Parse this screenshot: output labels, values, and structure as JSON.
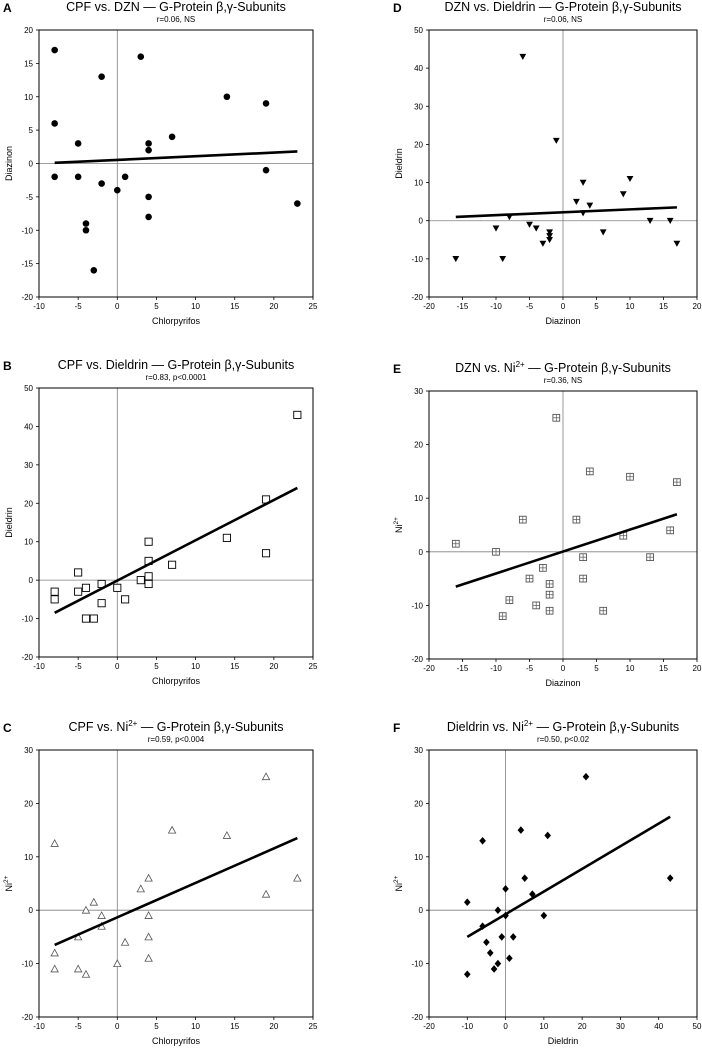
{
  "colors": {
    "ink": "#000000",
    "refline": "#808080",
    "background": "#ffffff"
  },
  "chart_data": [
    {
      "letter": "A",
      "type": "scatter",
      "marker": "circle-filled",
      "title": "CPF vs. DZN — G-Protein β,γ-Subunits",
      "title_sup": "",
      "subtitle": "r=0.06, NS",
      "xlabel": "Chlorpyrifos",
      "ylabel": "Diazinon",
      "ylabel_sup": "",
      "xlim": [
        -10,
        25
      ],
      "ylim": [
        -20,
        20
      ],
      "xticks": [
        -10,
        -5,
        0,
        5,
        10,
        15,
        20,
        25
      ],
      "yticks": [
        -20,
        -15,
        -10,
        -5,
        0,
        5,
        10,
        15,
        20
      ],
      "points": [
        [
          -8,
          17
        ],
        [
          -8,
          6
        ],
        [
          -8,
          -2
        ],
        [
          -5,
          3
        ],
        [
          -5,
          -2
        ],
        [
          -4,
          -9
        ],
        [
          -4,
          -10
        ],
        [
          -3,
          -16
        ],
        [
          -2,
          13
        ],
        [
          -2,
          -3
        ],
        [
          0,
          -4
        ],
        [
          1,
          -2
        ],
        [
          3,
          16
        ],
        [
          4,
          3
        ],
        [
          4,
          2
        ],
        [
          4,
          -5
        ],
        [
          4,
          -8
        ],
        [
          7,
          4
        ],
        [
          14,
          10
        ],
        [
          19,
          9
        ],
        [
          19,
          -1
        ],
        [
          23,
          -6
        ]
      ],
      "fit": [
        [
          -8,
          0.1
        ],
        [
          23,
          1.8
        ]
      ]
    },
    {
      "letter": "D",
      "type": "scatter",
      "marker": "triangle-down-filled",
      "title": "DZN vs. Dieldrin — G-Protein β,γ-Subunits",
      "title_sup": "",
      "subtitle": "r=0.06, NS",
      "xlabel": "Diazinon",
      "ylabel": "Dieldrin",
      "ylabel_sup": "",
      "xlim": [
        -20,
        20
      ],
      "ylim": [
        -20,
        50
      ],
      "xticks": [
        -20,
        -15,
        -10,
        -5,
        0,
        5,
        10,
        15,
        20
      ],
      "yticks": [
        -20,
        -10,
        0,
        10,
        20,
        30,
        40,
        50
      ],
      "points": [
        [
          -16,
          -10
        ],
        [
          -10,
          -2
        ],
        [
          -9,
          -10
        ],
        [
          -8,
          1
        ],
        [
          -6,
          43
        ],
        [
          -5,
          -1
        ],
        [
          -4,
          -2
        ],
        [
          -3,
          -6
        ],
        [
          -2,
          -3
        ],
        [
          -2,
          -4
        ],
        [
          -2,
          -5
        ],
        [
          -1,
          21
        ],
        [
          2,
          5
        ],
        [
          3,
          10
        ],
        [
          3,
          2
        ],
        [
          4,
          4
        ],
        [
          6,
          -3
        ],
        [
          9,
          7
        ],
        [
          10,
          11
        ],
        [
          13,
          0
        ],
        [
          16,
          0
        ],
        [
          17,
          -6
        ]
      ],
      "fit": [
        [
          -16,
          1.0
        ],
        [
          17,
          3.5
        ]
      ]
    },
    {
      "letter": "B",
      "type": "scatter",
      "marker": "square-open",
      "title": "CPF vs. Dieldrin — G-Protein β,γ-Subunits",
      "title_sup": "",
      "subtitle": "r=0.83, p<0.0001",
      "xlabel": "Chlorpyrifos",
      "ylabel": "Dieldrin",
      "ylabel_sup": "",
      "xlim": [
        -10,
        25
      ],
      "ylim": [
        -20,
        50
      ],
      "xticks": [
        -10,
        -5,
        0,
        5,
        10,
        15,
        20,
        25
      ],
      "yticks": [
        -20,
        -10,
        0,
        10,
        20,
        30,
        40,
        50
      ],
      "points": [
        [
          -8,
          -3
        ],
        [
          -8,
          -5
        ],
        [
          -5,
          2
        ],
        [
          -5,
          -3
        ],
        [
          -4,
          -2
        ],
        [
          -4,
          -10
        ],
        [
          -3,
          -10
        ],
        [
          -2,
          -1
        ],
        [
          -2,
          -6
        ],
        [
          0,
          -2
        ],
        [
          1,
          -5
        ],
        [
          3,
          0
        ],
        [
          4,
          10
        ],
        [
          4,
          5
        ],
        [
          4,
          1
        ],
        [
          4,
          -1
        ],
        [
          7,
          4
        ],
        [
          14,
          11
        ],
        [
          19,
          21
        ],
        [
          19,
          7
        ],
        [
          23,
          43
        ]
      ],
      "fit": [
        [
          -8,
          -8.5
        ],
        [
          23,
          24
        ]
      ]
    },
    {
      "letter": "E",
      "type": "scatter",
      "marker": "square-cross",
      "title": "DZN vs. Ni",
      "title_sup": "2+",
      "title_rest": " — G-Protein β,γ-Subunits",
      "subtitle": "r=0.36, NS",
      "xlabel": "Diazinon",
      "ylabel": "Ni",
      "ylabel_sup": "2+",
      "xlim": [
        -20,
        20
      ],
      "ylim": [
        -20,
        30
      ],
      "xticks": [
        -20,
        -15,
        -10,
        -5,
        0,
        5,
        10,
        15,
        20
      ],
      "yticks": [
        -20,
        -10,
        0,
        10,
        20,
        30
      ],
      "points": [
        [
          -16,
          1.5
        ],
        [
          -10,
          0
        ],
        [
          -9,
          -12
        ],
        [
          -8,
          -9
        ],
        [
          -6,
          6
        ],
        [
          -5,
          -5
        ],
        [
          -4,
          -10
        ],
        [
          -3,
          -3
        ],
        [
          -2,
          -6
        ],
        [
          -2,
          -8
        ],
        [
          -2,
          -11
        ],
        [
          -1,
          25
        ],
        [
          2,
          6
        ],
        [
          3,
          -1
        ],
        [
          3,
          -5
        ],
        [
          4,
          15
        ],
        [
          6,
          -11
        ],
        [
          9,
          3
        ],
        [
          10,
          14
        ],
        [
          13,
          -1
        ],
        [
          16,
          4
        ],
        [
          17,
          13
        ]
      ],
      "fit": [
        [
          -16,
          -6.5
        ],
        [
          17,
          7
        ]
      ]
    },
    {
      "letter": "C",
      "type": "scatter",
      "marker": "triangle-up-open",
      "title": "CPF vs. Ni",
      "title_sup": "2+",
      "title_rest": " — G-Protein β,γ-Subunits",
      "subtitle": "r=0.59, p<0.004",
      "xlabel": "Chlorpyrifos",
      "ylabel": "Ni",
      "ylabel_sup": "2+",
      "xlim": [
        -10,
        25
      ],
      "ylim": [
        -20,
        30
      ],
      "xticks": [
        -10,
        -5,
        0,
        5,
        10,
        15,
        20,
        25
      ],
      "yticks": [
        -20,
        -10,
        0,
        10,
        20,
        30
      ],
      "points": [
        [
          -8,
          12.5
        ],
        [
          -8,
          -8
        ],
        [
          -8,
          -11
        ],
        [
          -5,
          -5
        ],
        [
          -5,
          -11
        ],
        [
          -4,
          0
        ],
        [
          -4,
          -12
        ],
        [
          -3,
          1.5
        ],
        [
          -2,
          -1
        ],
        [
          -2,
          -3
        ],
        [
          0,
          -10
        ],
        [
          1,
          -6
        ],
        [
          3,
          4
        ],
        [
          4,
          6
        ],
        [
          4,
          -1
        ],
        [
          4,
          -5
        ],
        [
          4,
          -9
        ],
        [
          7,
          15
        ],
        [
          14,
          14
        ],
        [
          19,
          25
        ],
        [
          19,
          3
        ],
        [
          23,
          6
        ]
      ],
      "fit": [
        [
          -8,
          -6.5
        ],
        [
          23,
          13.5
        ]
      ]
    },
    {
      "letter": "F",
      "type": "scatter",
      "marker": "diamond-filled",
      "title": "Dieldrin vs. Ni",
      "title_sup": "2+",
      "title_rest": " — G-Protein β,γ-Subunits",
      "subtitle": "r=0.50, p<0.02",
      "xlabel": "Dieldrin",
      "ylabel": "Ni",
      "ylabel_sup": "2+",
      "xlim": [
        -20,
        50
      ],
      "ylim": [
        -20,
        30
      ],
      "xticks": [
        -20,
        -10,
        0,
        10,
        20,
        30,
        40,
        50
      ],
      "yticks": [
        -20,
        -10,
        0,
        10,
        20,
        30
      ],
      "points": [
        [
          -10,
          1.5
        ],
        [
          -10,
          -12
        ],
        [
          -6,
          13
        ],
        [
          -6,
          -3
        ],
        [
          -5,
          -6
        ],
        [
          -4,
          -8
        ],
        [
          -3,
          -11
        ],
        [
          -2,
          0
        ],
        [
          -2,
          -10
        ],
        [
          -1,
          -5
        ],
        [
          0,
          -1
        ],
        [
          0,
          4
        ],
        [
          1,
          -9
        ],
        [
          2,
          -5
        ],
        [
          4,
          15
        ],
        [
          5,
          6
        ],
        [
          7,
          3
        ],
        [
          10,
          -1
        ],
        [
          11,
          14
        ],
        [
          21,
          25
        ],
        [
          43,
          6
        ]
      ],
      "fit": [
        [
          -10,
          -5
        ],
        [
          43,
          17.5
        ]
      ]
    }
  ]
}
